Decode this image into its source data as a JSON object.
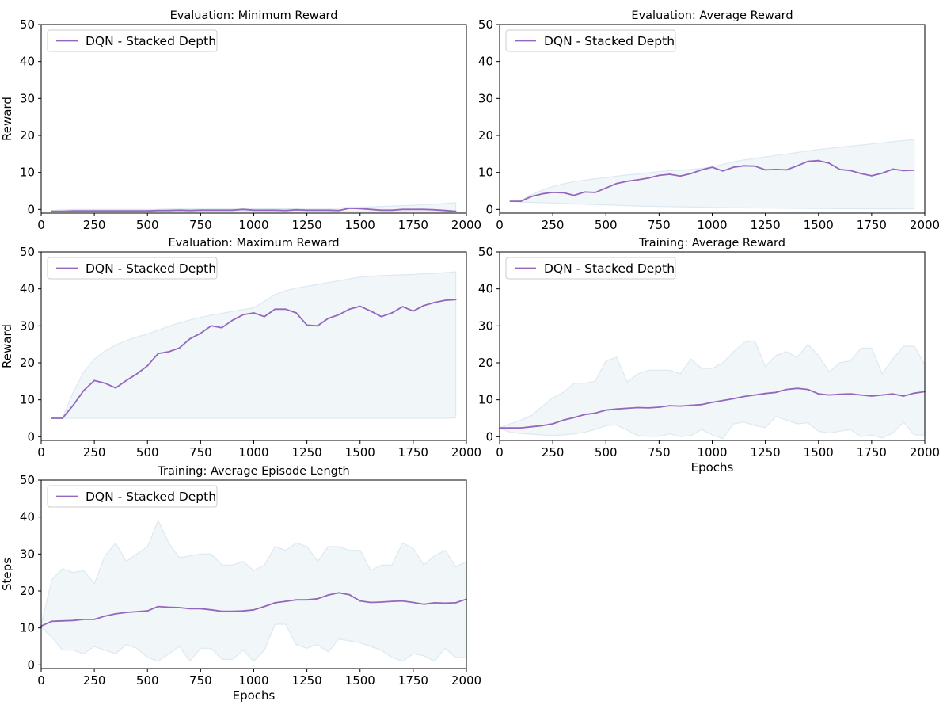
{
  "chart_data": [
    {
      "type": "line",
      "title": "Evaluation: Minimum Reward",
      "xlabel": "",
      "ylabel": "Reward",
      "xlim": [
        0,
        2000
      ],
      "ylim": [
        -1,
        50
      ],
      "xticks": [
        "0",
        "250",
        "500",
        "750",
        "1000",
        "1250",
        "1500",
        "1750",
        "2000"
      ],
      "yticks": [
        "0",
        "10",
        "20",
        "30",
        "40",
        "50"
      ],
      "legend": "upper-left",
      "series": [
        {
          "name": "DQN - Stacked Depth",
          "color": "#9467bd",
          "x": [
            50,
            100,
            150,
            200,
            250,
            300,
            350,
            400,
            450,
            500,
            550,
            600,
            650,
            700,
            750,
            800,
            850,
            900,
            950,
            1000,
            1050,
            1100,
            1150,
            1200,
            1250,
            1300,
            1350,
            1400,
            1450,
            1500,
            1550,
            1600,
            1650,
            1700,
            1750,
            1800,
            1850,
            1900,
            1950
          ],
          "y": [
            -0.5,
            -0.5,
            -0.4,
            -0.4,
            -0.4,
            -0.4,
            -0.4,
            -0.4,
            -0.4,
            -0.4,
            -0.3,
            -0.3,
            -0.2,
            -0.3,
            -0.2,
            -0.2,
            -0.2,
            -0.2,
            0.0,
            -0.2,
            -0.2,
            -0.2,
            -0.3,
            -0.1,
            -0.2,
            -0.2,
            -0.2,
            -0.3,
            0.3,
            0.2,
            0.0,
            -0.2,
            -0.2,
            0.0,
            0.0,
            0.0,
            -0.1,
            -0.3,
            -0.5
          ],
          "band_upper": [
            -0.3,
            -0.1,
            0.0,
            0.0,
            0.0,
            0.0,
            0.0,
            0.0,
            0.0,
            0.0,
            0.0,
            0.1,
            0.1,
            0.1,
            0.1,
            0.1,
            0.1,
            0.1,
            0.2,
            0.2,
            0.2,
            0.2,
            0.2,
            0.2,
            0.3,
            0.3,
            0.3,
            0.4,
            0.6,
            0.6,
            0.7,
            0.8,
            0.9,
            1.0,
            1.1,
            1.3,
            1.4,
            1.6,
            1.8
          ],
          "band_lower": [
            -0.6,
            -0.6,
            -0.6,
            -0.6,
            -0.6,
            -0.6,
            -0.6,
            -0.6,
            -0.6,
            -0.6,
            -0.6,
            -0.6,
            -0.6,
            -0.6,
            -0.6,
            -0.6,
            -0.6,
            -0.6,
            -0.6,
            -0.6,
            -0.6,
            -0.6,
            -0.6,
            -0.6,
            -0.6,
            -0.6,
            -0.6,
            -0.6,
            -0.6,
            -0.6,
            -0.6,
            -0.6,
            -0.6,
            -0.6,
            -0.6,
            -0.6,
            -0.6,
            -0.6,
            -0.6
          ]
        }
      ]
    },
    {
      "type": "line",
      "title": "Evaluation: Average Reward",
      "xlabel": "",
      "ylabel": "",
      "xlim": [
        0,
        2000
      ],
      "ylim": [
        -1,
        50
      ],
      "xticks": [
        "0",
        "250",
        "500",
        "750",
        "1000",
        "1250",
        "1500",
        "1750",
        "2000"
      ],
      "yticks": [
        "0",
        "10",
        "20",
        "30",
        "40",
        "50"
      ],
      "legend": "upper-left",
      "series": [
        {
          "name": "DQN - Stacked Depth",
          "color": "#9467bd",
          "x": [
            50,
            100,
            150,
            200,
            250,
            300,
            350,
            400,
            450,
            500,
            550,
            600,
            650,
            700,
            750,
            800,
            850,
            900,
            950,
            1000,
            1050,
            1100,
            1150,
            1200,
            1250,
            1300,
            1350,
            1400,
            1450,
            1500,
            1550,
            1600,
            1650,
            1700,
            1750,
            1800,
            1850,
            1900,
            1950
          ],
          "y": [
            2.2,
            2.2,
            3.5,
            4.2,
            4.6,
            4.5,
            3.8,
            4.7,
            4.6,
            5.8,
            7.0,
            7.6,
            8.0,
            8.5,
            9.2,
            9.5,
            9.0,
            9.7,
            10.7,
            11.4,
            10.4,
            11.4,
            11.8,
            11.7,
            10.7,
            10.8,
            10.7,
            11.8,
            13.0,
            13.2,
            12.5,
            10.8,
            10.5,
            9.7,
            9.1,
            9.8,
            10.9,
            10.5,
            10.6
          ],
          "band_upper": [
            2.2,
            2.4,
            4.0,
            5.2,
            6.2,
            6.9,
            7.5,
            7.9,
            8.3,
            8.6,
            9.0,
            9.3,
            9.6,
            9.9,
            10.2,
            10.5,
            10.6,
            10.8,
            11.1,
            11.5,
            12.2,
            12.9,
            13.4,
            13.8,
            14.2,
            14.6,
            15.0,
            15.4,
            15.8,
            16.2,
            16.5,
            16.8,
            17.1,
            17.4,
            17.7,
            18.0,
            18.3,
            18.6,
            18.9
          ],
          "band_lower": [
            2.2,
            2.0,
            1.9,
            1.8,
            1.7,
            1.6,
            1.5,
            1.4,
            1.3,
            1.2,
            1.1,
            1.0,
            0.9,
            0.85,
            0.8,
            0.75,
            0.7,
            0.65,
            0.6,
            0.55,
            0.5,
            0.45,
            0.42,
            0.4,
            0.37,
            0.34,
            0.31,
            0.28,
            0.26,
            0.24,
            0.22,
            0.2,
            0.19,
            0.18,
            0.17,
            0.16,
            0.15,
            0.14,
            0.13
          ]
        }
      ]
    },
    {
      "type": "line",
      "title": "Evaluation: Maximum Reward",
      "xlabel": "",
      "ylabel": "Reward",
      "xlim": [
        0,
        2000
      ],
      "ylim": [
        -1,
        50
      ],
      "xticks": [
        "0",
        "250",
        "500",
        "750",
        "1000",
        "1250",
        "1500",
        "1750",
        "2000"
      ],
      "yticks": [
        "0",
        "10",
        "20",
        "30",
        "40",
        "50"
      ],
      "legend": "upper-left",
      "series": [
        {
          "name": "DQN - Stacked Depth",
          "color": "#9467bd",
          "x": [
            50,
            100,
            150,
            200,
            250,
            300,
            350,
            400,
            450,
            500,
            550,
            600,
            650,
            700,
            750,
            800,
            850,
            900,
            950,
            1000,
            1050,
            1100,
            1150,
            1200,
            1250,
            1300,
            1350,
            1400,
            1450,
            1500,
            1550,
            1600,
            1650,
            1700,
            1750,
            1800,
            1850,
            1900,
            1950
          ],
          "y": [
            5.0,
            5.0,
            8.5,
            12.5,
            15.2,
            14.5,
            13.2,
            15.2,
            17.0,
            19.2,
            22.5,
            23.0,
            24.0,
            26.5,
            28.0,
            30.0,
            29.5,
            31.5,
            33.0,
            33.5,
            32.5,
            34.5,
            34.5,
            33.5,
            30.2,
            30.0,
            32.0,
            33.0,
            34.5,
            35.3,
            34.0,
            32.5,
            33.5,
            35.2,
            34.0,
            35.5,
            36.3,
            36.9,
            37.1
          ],
          "band_upper": [
            5.0,
            5.0,
            12.0,
            17.5,
            21.0,
            23.2,
            24.8,
            26.0,
            27.0,
            27.8,
            28.8,
            29.9,
            30.8,
            31.6,
            32.3,
            32.9,
            33.4,
            33.9,
            34.4,
            34.9,
            36.6,
            38.4,
            39.5,
            40.2,
            40.7,
            41.2,
            41.7,
            42.2,
            42.7,
            43.2,
            43.4,
            43.6,
            43.7,
            43.8,
            43.9,
            44.1,
            44.2,
            44.4,
            44.6
          ],
          "band_lower": [
            5.0,
            5.0,
            5.0,
            5.0,
            5.0,
            5.0,
            5.0,
            5.0,
            5.0,
            5.0,
            5.0,
            5.0,
            5.0,
            5.0,
            5.0,
            5.0,
            5.0,
            5.0,
            5.0,
            5.0,
            5.0,
            5.0,
            5.0,
            5.0,
            5.0,
            5.0,
            5.0,
            5.0,
            5.0,
            5.0,
            5.0,
            5.0,
            5.0,
            5.0,
            5.0,
            5.0,
            5.0,
            5.0,
            5.1
          ]
        }
      ]
    },
    {
      "type": "line",
      "title": "Training: Average Reward",
      "xlabel": "Epochs",
      "ylabel": "",
      "xlim": [
        0,
        2000
      ],
      "ylim": [
        -1,
        50
      ],
      "xticks": [
        "0",
        "250",
        "500",
        "750",
        "1000",
        "1250",
        "1500",
        "1750",
        "2000"
      ],
      "yticks": [
        "0",
        "10",
        "20",
        "30",
        "40",
        "50"
      ],
      "legend": "upper-left",
      "series": [
        {
          "name": "DQN - Stacked Depth",
          "color": "#9467bd",
          "x": [
            0,
            50,
            100,
            150,
            200,
            250,
            300,
            350,
            400,
            450,
            500,
            550,
            600,
            650,
            700,
            750,
            800,
            850,
            900,
            950,
            1000,
            1050,
            1100,
            1150,
            1200,
            1250,
            1300,
            1350,
            1400,
            1450,
            1500,
            1550,
            1600,
            1650,
            1700,
            1750,
            1800,
            1850,
            1900,
            1950,
            2000
          ],
          "y": [
            2.4,
            2.4,
            2.4,
            2.7,
            3.0,
            3.5,
            4.5,
            5.2,
            6.0,
            6.4,
            7.2,
            7.5,
            7.7,
            7.9,
            7.8,
            8.0,
            8.4,
            8.3,
            8.5,
            8.7,
            9.3,
            9.8,
            10.3,
            10.9,
            11.3,
            11.7,
            12.0,
            12.8,
            13.1,
            12.8,
            11.6,
            11.3,
            11.5,
            11.6,
            11.3,
            11.0,
            11.3,
            11.6,
            11.0,
            11.8,
            12.2
          ],
          "band_upper": [
            2.5,
            3.5,
            4.5,
            5.8,
            8.2,
            10.5,
            12.0,
            14.5,
            14.5,
            15.0,
            20.5,
            21.5,
            14.8,
            17.0,
            18.0,
            18.0,
            18.0,
            17.0,
            21.0,
            18.5,
            18.5,
            20.0,
            23.0,
            25.5,
            26.0,
            19.0,
            22.0,
            23.0,
            21.5,
            25.0,
            22.0,
            17.5,
            20.0,
            20.5,
            24.0,
            24.0,
            17.0,
            21.0,
            24.5,
            24.5,
            19.5
          ],
          "band_lower": [
            2.3,
            1.2,
            0.9,
            0.7,
            0.5,
            0.3,
            0.5,
            0.8,
            1.2,
            2.0,
            3.0,
            3.2,
            1.8,
            0.3,
            0.1,
            0.1,
            0.8,
            0.0,
            0.3,
            2.0,
            0.5,
            -0.5,
            3.5,
            4.0,
            3.0,
            2.5,
            5.5,
            4.5,
            3.5,
            3.8,
            1.5,
            1.0,
            1.5,
            2.0,
            0.0,
            0.5,
            -0.3,
            1.0,
            4.0,
            0.5,
            0.5
          ]
        }
      ]
    },
    {
      "type": "line",
      "title": "Training: Average Episode Length",
      "xlabel": "Epochs",
      "ylabel": "Steps",
      "xlim": [
        0,
        2000
      ],
      "ylim": [
        -1,
        50
      ],
      "xticks": [
        "0",
        "250",
        "500",
        "750",
        "1000",
        "1250",
        "1500",
        "1750",
        "2000"
      ],
      "yticks": [
        "0",
        "10",
        "20",
        "30",
        "40",
        "50"
      ],
      "legend": "upper-left",
      "series": [
        {
          "name": "DQN - Stacked Depth",
          "color": "#9467bd",
          "x": [
            0,
            50,
            100,
            150,
            200,
            250,
            300,
            350,
            400,
            450,
            500,
            550,
            600,
            650,
            700,
            750,
            800,
            850,
            900,
            950,
            1000,
            1050,
            1100,
            1150,
            1200,
            1250,
            1300,
            1350,
            1400,
            1450,
            1500,
            1550,
            1600,
            1650,
            1700,
            1750,
            1800,
            1850,
            1900,
            1950,
            2000
          ],
          "y": [
            10.5,
            11.8,
            11.9,
            12.0,
            12.3,
            12.3,
            13.2,
            13.8,
            14.2,
            14.4,
            14.6,
            15.8,
            15.6,
            15.5,
            15.2,
            15.2,
            14.9,
            14.5,
            14.5,
            14.6,
            14.9,
            15.8,
            16.8,
            17.2,
            17.6,
            17.6,
            17.9,
            18.9,
            19.5,
            19.0,
            17.3,
            16.9,
            17.0,
            17.2,
            17.3,
            16.9,
            16.4,
            16.8,
            16.7,
            16.8,
            17.8
          ],
          "band_upper": [
            10.8,
            23.0,
            26.0,
            25.0,
            25.5,
            22.0,
            29.5,
            33.0,
            28.0,
            30.0,
            32.0,
            39.0,
            33.0,
            29.0,
            29.5,
            30.0,
            30.0,
            27.0,
            27.0,
            28.0,
            25.5,
            27.0,
            32.0,
            31.0,
            33.0,
            32.0,
            28.0,
            32.0,
            32.0,
            31.0,
            31.0,
            25.5,
            27.0,
            27.0,
            33.0,
            31.5,
            27.0,
            29.5,
            31.0,
            26.5,
            28.0
          ],
          "band_lower": [
            10.2,
            7.5,
            4.0,
            4.0,
            3.0,
            5.0,
            4.0,
            3.0,
            5.5,
            4.5,
            2.0,
            1.0,
            3.0,
            5.0,
            1.0,
            4.5,
            4.5,
            1.5,
            1.5,
            4.0,
            1.0,
            4.0,
            11.0,
            11.0,
            5.5,
            4.5,
            5.5,
            3.5,
            7.0,
            6.5,
            6.0,
            5.0,
            4.0,
            2.0,
            1.0,
            3.0,
            2.5,
            1.0,
            4.5,
            2.0,
            2.0
          ]
        }
      ]
    }
  ]
}
